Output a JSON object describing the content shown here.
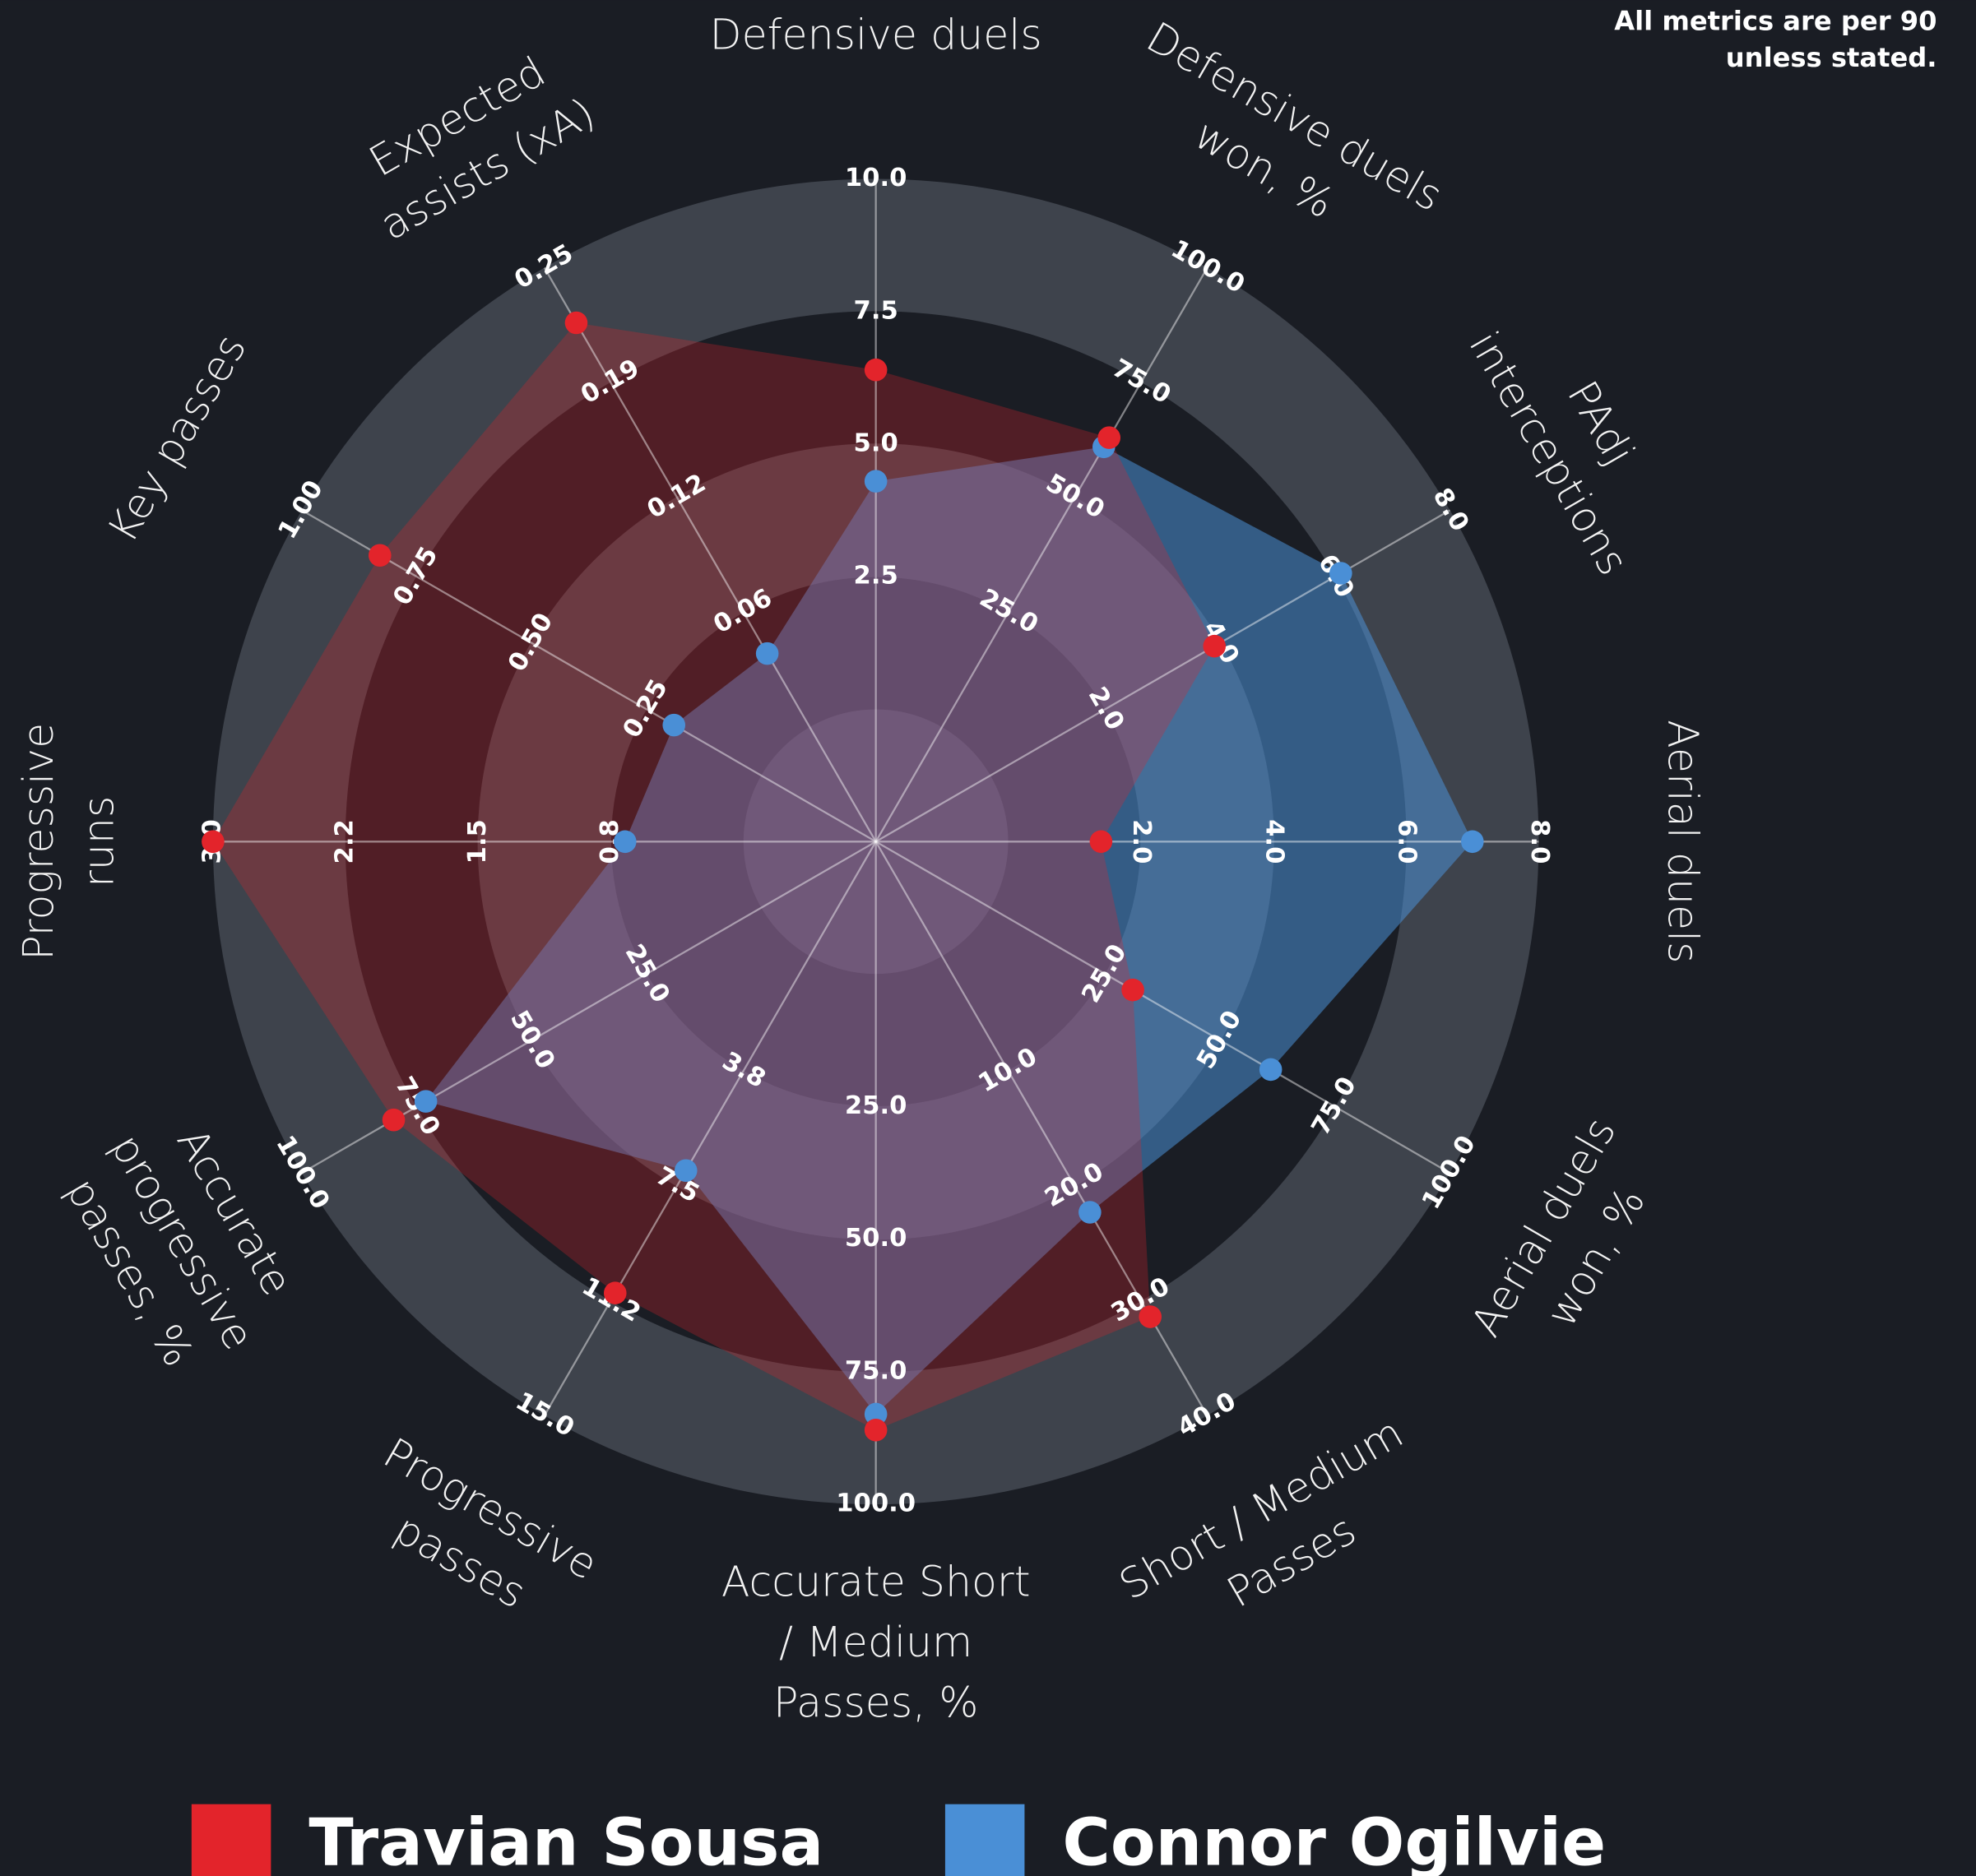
{
  "chart_data": {
    "type": "radar",
    "note": [
      "All metrics are per 90",
      "unless stated."
    ],
    "categories": [
      [
        "Defensive duels"
      ],
      [
        "Defensive duels",
        "won, %"
      ],
      [
        "PAdj",
        "interceptions"
      ],
      [
        "Aerial duels"
      ],
      [
        "Aerial duels",
        "won, %"
      ],
      [
        "Short / Medium",
        "Passes"
      ],
      [
        "Accurate Short",
        "/ Medium",
        "Passes, %"
      ],
      [
        "Progressive",
        "passes"
      ],
      [
        "Accurate",
        "progressive",
        "passes, %"
      ],
      [
        "Progressive",
        "runs"
      ],
      [
        "Key passes"
      ],
      [
        "Expected",
        "assists (xA)"
      ]
    ],
    "axes": [
      {
        "lim": [
          0,
          10
        ],
        "ticks": [
          2.5,
          {
            "value": 5,
            "label": "5.0"
          },
          7.5,
          {
            "value": 10,
            "label": "10.0"
          }
        ]
      },
      {
        "lim": [
          0,
          100
        ],
        "ticks": [
          {
            "value": 25,
            "label": "25.0"
          },
          {
            "value": 50,
            "label": "50.0"
          },
          {
            "value": 75,
            "label": "75.0"
          },
          {
            "value": 100,
            "label": "100.0"
          }
        ]
      },
      {
        "lim": [
          0,
          8
        ],
        "ticks": [
          {
            "value": 2,
            "label": "2.0"
          },
          {
            "value": 4,
            "label": "4.0"
          },
          {
            "value": 6,
            "label": "6.0"
          },
          {
            "value": 8,
            "label": "8.0"
          }
        ]
      },
      {
        "lim": [
          0,
          8
        ],
        "ticks": [
          {
            "value": 2,
            "label": "2.0"
          },
          {
            "value": 4,
            "label": "4.0"
          },
          {
            "value": 6,
            "label": "6.0"
          },
          {
            "value": 8,
            "label": "8.0"
          }
        ]
      },
      {
        "lim": [
          0,
          100
        ],
        "ticks": [
          {
            "value": 25,
            "label": "25.0"
          },
          {
            "value": 50,
            "label": "50.0"
          },
          {
            "value": 75,
            "label": "75.0"
          },
          {
            "value": 100,
            "label": "100.0"
          }
        ]
      },
      {
        "lim": [
          0,
          40
        ],
        "ticks": [
          {
            "value": 10,
            "label": "10.0"
          },
          {
            "value": 20,
            "label": "20.0"
          },
          {
            "value": 30,
            "label": "30.0"
          },
          {
            "value": 40,
            "label": "40.0"
          }
        ]
      },
      {
        "lim": [
          0,
          100
        ],
        "ticks": [
          {
            "value": 25,
            "label": "25.0"
          },
          {
            "value": 50,
            "label": "50.0"
          },
          {
            "value": 75,
            "label": "75.0"
          },
          {
            "value": 100,
            "label": "100.0"
          }
        ]
      },
      {
        "lim": [
          0,
          15
        ],
        "ticks": [
          {
            "value": 3.75,
            "label": "3.8"
          },
          7.5,
          {
            "value": 11.25,
            "label": "11.2"
          },
          {
            "value": 15,
            "label": "15.0"
          }
        ]
      },
      {
        "lim": [
          0,
          100
        ],
        "ticks": [
          {
            "value": 25,
            "label": "25.0"
          },
          {
            "value": 50,
            "label": "50.0"
          },
          {
            "value": 75,
            "label": "75.0"
          },
          {
            "value": 100,
            "label": "100.0"
          }
        ]
      },
      {
        "lim": [
          0,
          3
        ],
        "ticks": [
          {
            "value": 0.75,
            "label": "0.8"
          },
          1.5,
          {
            "value": 2.25,
            "label": "2.2"
          },
          {
            "value": 3,
            "label": "3.0"
          }
        ]
      },
      {
        "lim": [
          0,
          1
        ],
        "ticks": [
          0.25,
          {
            "value": 0.5,
            "label": "0.50"
          },
          0.75,
          {
            "value": 1,
            "label": "1.00"
          }
        ]
      },
      {
        "lim": [
          0,
          0.25
        ],
        "ticks": [
          {
            "value": 0.0625,
            "label": "0.06"
          },
          {
            "value": 0.125,
            "label": "0.12"
          },
          {
            "value": 0.1875,
            "label": "0.19"
          },
          0.25
        ]
      }
    ],
    "series": [
      {
        "name": "Travian Sousa",
        "color": "#e3242b",
        "values": [
          6.4,
          63,
          3.9,
          1.4,
          31,
          31.4,
          86,
          11.0,
          80,
          3.0,
          0.83,
          0.22
        ]
      },
      {
        "name": "Connor Ogilvie",
        "color": "#4a8fd6",
        "values": [
          4.3,
          61,
          6.1,
          7.0,
          61,
          22.3,
          83,
          7.0,
          73,
          0.67,
          0.19,
          0.04
        ]
      }
    ]
  }
}
